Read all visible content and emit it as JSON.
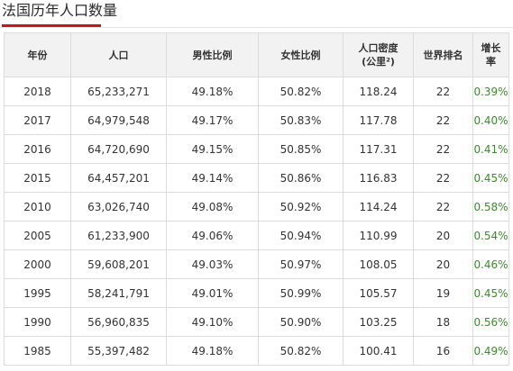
{
  "page": {
    "title": "法国历年人口数量",
    "accent_color": "#c9161e",
    "growth_color": "#3a8c2b"
  },
  "table": {
    "headers": [
      [
        "年份"
      ],
      [
        "人口"
      ],
      [
        "男性比例"
      ],
      [
        "女性比例"
      ],
      [
        "人口密度",
        "(公里²)"
      ],
      [
        "世界排名"
      ],
      [
        "增长",
        "率"
      ]
    ],
    "rows": [
      [
        "2018",
        "65,233,271",
        "49.18%",
        "50.82%",
        "118.24",
        "22",
        "0.39%"
      ],
      [
        "2017",
        "64,979,548",
        "49.17%",
        "50.83%",
        "117.78",
        "22",
        "0.40%"
      ],
      [
        "2016",
        "64,720,690",
        "49.15%",
        "50.85%",
        "117.31",
        "22",
        "0.41%"
      ],
      [
        "2015",
        "64,457,201",
        "49.14%",
        "50.86%",
        "116.83",
        "22",
        "0.45%"
      ],
      [
        "2010",
        "63,026,740",
        "49.08%",
        "50.92%",
        "114.24",
        "22",
        "0.58%"
      ],
      [
        "2005",
        "61,233,900",
        "49.06%",
        "50.94%",
        "110.99",
        "20",
        "0.54%"
      ],
      [
        "2000",
        "59,608,201",
        "49.03%",
        "50.97%",
        "108.05",
        "20",
        "0.46%"
      ],
      [
        "1995",
        "58,241,791",
        "49.01%",
        "50.99%",
        "105.57",
        "19",
        "0.45%"
      ],
      [
        "1990",
        "56,960,835",
        "49.10%",
        "50.90%",
        "103.25",
        "18",
        "0.56%"
      ],
      [
        "1985",
        "55,397,482",
        "49.18%",
        "50.82%",
        "100.41",
        "16",
        "0.49%"
      ]
    ]
  }
}
